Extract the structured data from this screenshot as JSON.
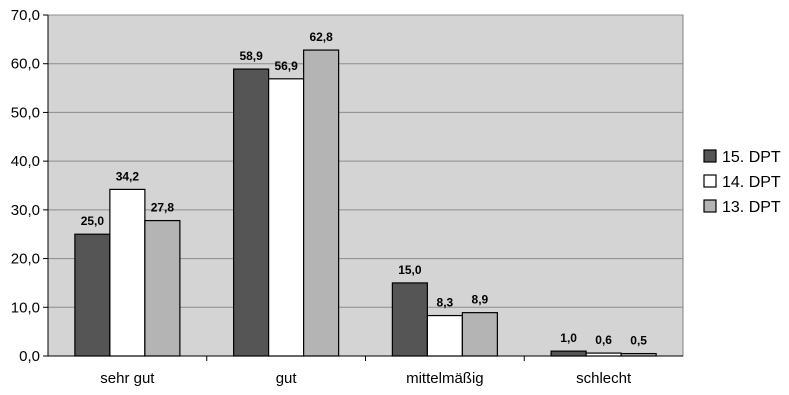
{
  "chart_data": {
    "type": "bar",
    "categories": [
      "sehr gut",
      "gut",
      "mittelmäßig",
      "schlecht"
    ],
    "series": [
      {
        "name": "15. DPT",
        "values": [
          25.0,
          58.9,
          15.0,
          1.0
        ],
        "labels": [
          "25,0",
          "58,9",
          "15,0",
          "1,0"
        ],
        "color": "#555555"
      },
      {
        "name": "14. DPT",
        "values": [
          34.2,
          56.9,
          8.3,
          0.6
        ],
        "labels": [
          "34,2",
          "56,9",
          "8,3",
          "0,6"
        ],
        "color": "#ffffff"
      },
      {
        "name": "13. DPT",
        "values": [
          27.8,
          62.8,
          8.9,
          0.5
        ],
        "labels": [
          "27,8",
          "62,8",
          "8,9",
          "0,5"
        ],
        "color": "#b4b4b4"
      }
    ],
    "ylim": [
      0,
      70
    ],
    "yticks": [
      0,
      10,
      20,
      30,
      40,
      50,
      60,
      70
    ],
    "ytick_labels": [
      "0,0",
      "10,0",
      "20,0",
      "30,0",
      "40,0",
      "50,0",
      "60,0",
      "70,0"
    ],
    "grid": true,
    "legend_position": "right",
    "plot_background": "#d4d4d4",
    "title": "",
    "xlabel": "",
    "ylabel": ""
  }
}
